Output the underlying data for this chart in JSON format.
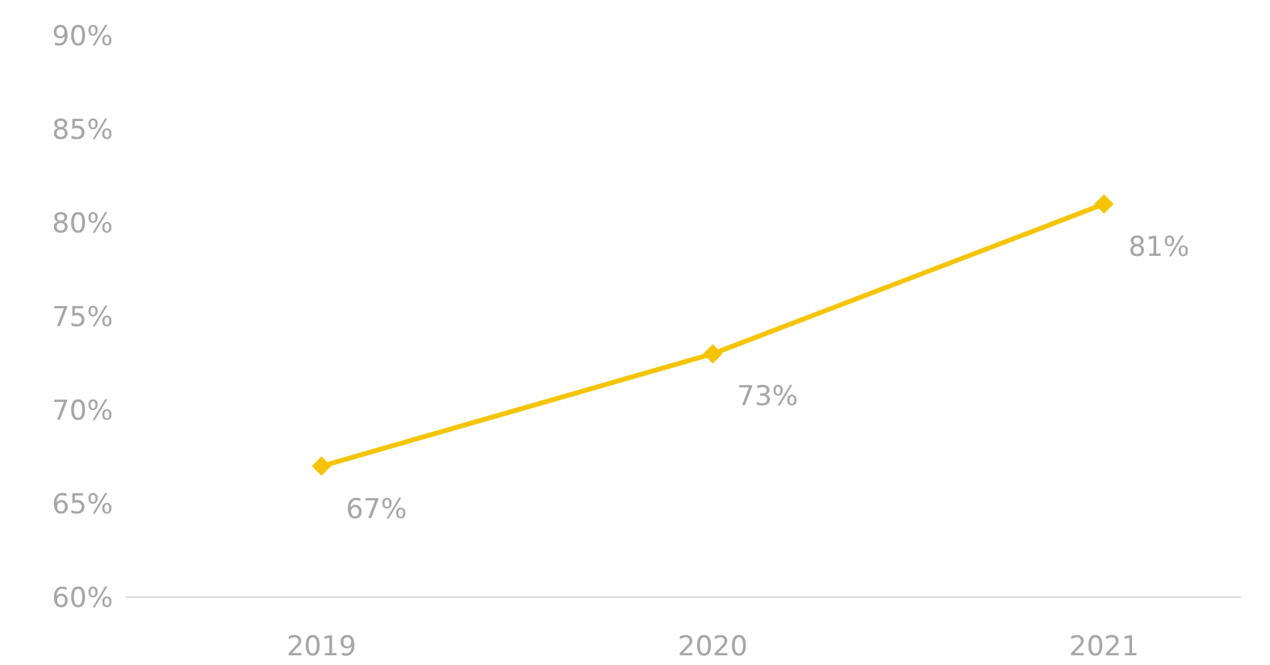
{
  "chart_data": {
    "type": "line",
    "categories": [
      "2019",
      "2020",
      "2021"
    ],
    "series": [
      {
        "color": "#f5c400",
        "values": [
          67,
          73,
          81
        ]
      }
    ],
    "value_labels": [
      "67%",
      "73%",
      "81%"
    ],
    "ylim": [
      60,
      90
    ],
    "yticks": [
      {
        "value": 60,
        "label": "60%"
      },
      {
        "value": 65,
        "label": "65%"
      },
      {
        "value": 70,
        "label": "70%"
      },
      {
        "value": 75,
        "label": "75%"
      },
      {
        "value": 80,
        "label": "80%"
      },
      {
        "value": 85,
        "label": "85%"
      },
      {
        "value": 90,
        "label": "90%"
      }
    ],
    "marker": "diamond",
    "grid": false,
    "legend": false
  }
}
